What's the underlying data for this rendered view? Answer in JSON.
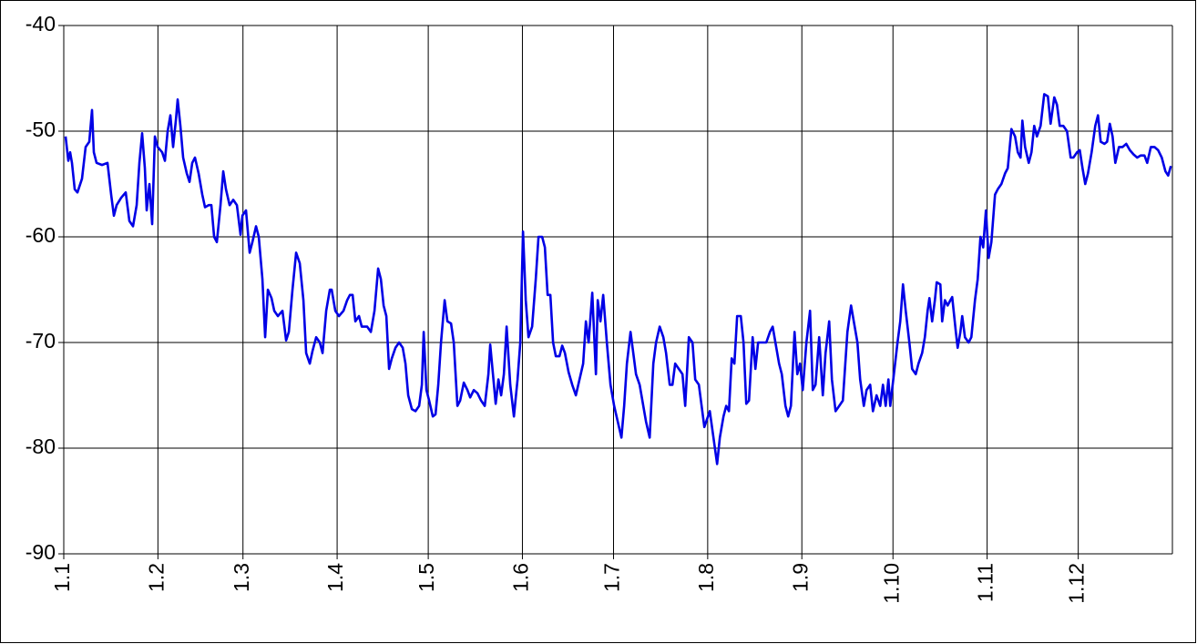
{
  "chart_data": {
    "type": "line",
    "color": "#0000e6",
    "grid": true,
    "xlim": [
      0,
      365
    ],
    "xticks": [
      {
        "value": 0,
        "label": "1.1"
      },
      {
        "value": 31,
        "label": "1.2"
      },
      {
        "value": 59,
        "label": "1.3"
      },
      {
        "value": 90,
        "label": "1.4"
      },
      {
        "value": 120,
        "label": "1.5"
      },
      {
        "value": 151,
        "label": "1.6"
      },
      {
        "value": 181,
        "label": "1.7"
      },
      {
        "value": 212,
        "label": "1.8"
      },
      {
        "value": 243,
        "label": "1.9"
      },
      {
        "value": 273,
        "label": "1.10"
      },
      {
        "value": 304,
        "label": "1.11"
      },
      {
        "value": 334,
        "label": "1.12"
      }
    ],
    "ylim": [
      -90,
      -40
    ],
    "yticks": [
      -90,
      -80,
      -70,
      -60,
      -50,
      -40
    ],
    "x": [
      0.6,
      1.5,
      2.1,
      2.7,
      3.6,
      4.5,
      6,
      7.2,
      8.4,
      9.3,
      9.9,
      10.8,
      12.6,
      14.4,
      15.6,
      16.5,
      17.4,
      18.9,
      20.4,
      21.6,
      22.8,
      24,
      24.9,
      25.8,
      26.7,
      27.3,
      28.2,
      29.1,
      30,
      30.9,
      32.4,
      33.3,
      34.2,
      35.1,
      36,
      36.9,
      37.5,
      38.4,
      39.3,
      40.5,
      41.4,
      42.3,
      43.2,
      44.4,
      45.6,
      46.5,
      47.7,
      48.6,
      49.5,
      50.4,
      51.6,
      52.5,
      53.4,
      54.6,
      55.8,
      57,
      58.2,
      58.8,
      60,
      61.2,
      62.1,
      63.3,
      64.2,
      65.4,
      66.3,
      67.2,
      68.4,
      69.3,
      70.5,
      72,
      73.2,
      74.1,
      75.3,
      76.5,
      77.7,
      78.9,
      79.8,
      81,
      81.9,
      83.1,
      84.3,
      85.2,
      86.4,
      87.6,
      88.2,
      89.4,
      90.6,
      92.1,
      93.3,
      94.2,
      95.1,
      96,
      97.2,
      98.1,
      99.9,
      101.1,
      102.3,
      103.5,
      104.4,
      105.3,
      106.2,
      107.1,
      108,
      109.2,
      110.4,
      111.6,
      112.5,
      113.4,
      114.6,
      115.8,
      117,
      117.9,
      118.5,
      119.4,
      120.3,
      121.5,
      122.4,
      123.3,
      124.2,
      125.4,
      126.3,
      127.5,
      128.4,
      129.6,
      130.5,
      131.7,
      132.9,
      133.8,
      135,
      136.2,
      137.4,
      138.6,
      139.8,
      140.4,
      141.3,
      142.2,
      143.1,
      144,
      144.9,
      145.8,
      147,
      148.2,
      149.4,
      150.3,
      151.2,
      152.1,
      153,
      154.2,
      155.4,
      156.3,
      157.5,
      158.4,
      159.3,
      160.2,
      161.1,
      162,
      163.2,
      164.1,
      165,
      166.2,
      167.4,
      168.6,
      169.8,
      171,
      171.9,
      172.8,
      174,
      175.2,
      175.8,
      176.7,
      177.6,
      178.8,
      180,
      181.2,
      182.4,
      183.6,
      184.5,
      185.4,
      186.6,
      187.5,
      188.4,
      189.6,
      190.8,
      191.7,
      192.9,
      194.1,
      195,
      196.2,
      197.4,
      198.3,
      199.5,
      200.4,
      201.3,
      202.5,
      203.7,
      204.6,
      205.8,
      207,
      207.9,
      209.1,
      210,
      210.9,
      212.1,
      212.7,
      213.9,
      215.1,
      216,
      217.2,
      218.1,
      219,
      219.9,
      220.8,
      221.7,
      222.9,
      223.8,
      224.7,
      225.6,
      226.8,
      227.7,
      228.6,
      230.1,
      231.3,
      232.5,
      233.4,
      234.6,
      235.5,
      236.4,
      237.6,
      238.5,
      239.4,
      240.6,
      241.5,
      242.4,
      243.3,
      244.5,
      245.7,
      246.6,
      247.5,
      248.7,
      249.9,
      250.8,
      252,
      252.9,
      254.1,
      255.3,
      256.5,
      258,
      259.2,
      260.1,
      261.3,
      262.2,
      263.4,
      264.3,
      265.5,
      266.4,
      267.6,
      268.8,
      269.7,
      270.6,
      271.5,
      272.1,
      273.3,
      274.5,
      275.4,
      276.3,
      277.2,
      278.4,
      279.3,
      280.5,
      281.4,
      282.6,
      283.5,
      284.4,
      285,
      285.9,
      286.8,
      287.4,
      288.6,
      289.2,
      290.1,
      291,
      291.9,
      292.5,
      293.7,
      294.3,
      295.2,
      295.8,
      296.7,
      297.9,
      298.8,
      300,
      300.9,
      301.8,
      302.7,
      303.6,
      304.5,
      305.4,
      306.6,
      307.5,
      308.7,
      309.9,
      310.8,
      312,
      313.2,
      314.1,
      315,
      315.6,
      316.5,
      317.7,
      318.6,
      319.5,
      320.4,
      321.6,
      322.8,
      324,
      324.9,
      326.1,
      327,
      327.9,
      329.1,
      330.3,
      331.5,
      332.4,
      333.6,
      334.5,
      335.4,
      336.3,
      337.2,
      338.4,
      339.6,
      340.5,
      341.4,
      342.6,
      343.5,
      344.4,
      345.3,
      346.2,
      347.4,
      348.6,
      349.8,
      351,
      352.2,
      353.4,
      354.6,
      355.8,
      356.7,
      357.9,
      359.1,
      360.3,
      361.5,
      362.7,
      363.6,
      364.5
    ],
    "values": [
      -50.5,
      -52.8,
      -52,
      -53,
      -55.5,
      -55.8,
      -54.5,
      -51.5,
      -51,
      -48,
      -52,
      -53,
      -53.2,
      -53,
      -56,
      -58,
      -57,
      -56.3,
      -55.8,
      -58.5,
      -59,
      -57,
      -53,
      -50.2,
      -53.5,
      -57.5,
      -55,
      -58.8,
      -50.5,
      -51.5,
      -52,
      -52.8,
      -50,
      -48.5,
      -51.5,
      -49,
      -47,
      -49.5,
      -52.5,
      -54,
      -54.8,
      -53,
      -52.5,
      -54,
      -56,
      -57.2,
      -57,
      -57,
      -60,
      -60.5,
      -57,
      -53.8,
      -55.5,
      -57,
      -56.5,
      -57,
      -59.8,
      -58,
      -57.5,
      -61.5,
      -60.5,
      -59,
      -60,
      -64,
      -69.5,
      -65,
      -65.8,
      -67,
      -67.5,
      -67,
      -69.8,
      -69,
      -65,
      -61.5,
      -62.5,
      -66,
      -71,
      -72,
      -70.8,
      -69.5,
      -70,
      -71,
      -67,
      -65,
      -65,
      -67,
      -67.5,
      -67,
      -66,
      -65.5,
      -65.5,
      -68,
      -67.5,
      -68.5,
      -68.5,
      -69,
      -67,
      -63,
      -64,
      -66.5,
      -67.5,
      -72.5,
      -71.5,
      -70.5,
      -70,
      -70.5,
      -72,
      -75,
      -76.3,
      -76.5,
      -76,
      -74,
      -69,
      -74.5,
      -75.5,
      -77,
      -76.8,
      -74,
      -70,
      -66,
      -68,
      -68.2,
      -70,
      -76,
      -75.5,
      -73.8,
      -74.5,
      -75.2,
      -74.5,
      -74.8,
      -75.5,
      -76,
      -73,
      -70.2,
      -73,
      -75.8,
      -73.5,
      -75,
      -73,
      -68.5,
      -74,
      -77,
      -73.5,
      -70,
      -59.5,
      -66,
      -69.5,
      -68.5,
      -64,
      -60,
      -60,
      -61,
      -65.5,
      -65.5,
      -70,
      -71.3,
      -71.3,
      -70.3,
      -71,
      -72.8,
      -74,
      -75,
      -73.5,
      -72,
      -68,
      -70,
      -65.3,
      -73,
      -66,
      -68,
      -65.5,
      -70,
      -74,
      -76,
      -77.5,
      -79,
      -76,
      -72,
      -69,
      -71,
      -73,
      -74,
      -76,
      -77.5,
      -79,
      -72,
      -70,
      -68.5,
      -69.5,
      -71,
      -74,
      -74,
      -72,
      -72.5,
      -73,
      -76,
      -69.5,
      -70,
      -73.5,
      -74,
      -76,
      -78,
      -77,
      -76.5,
      -79,
      -81.5,
      -79,
      -77,
      -76,
      -76.5,
      -71.5,
      -72,
      -67.5,
      -67.5,
      -70,
      -75.8,
      -75.5,
      -69.5,
      -72.5,
      -70,
      -70,
      -70,
      -69,
      -68.5,
      -70.5,
      -72,
      -73,
      -76,
      -77,
      -76,
      -69,
      -73,
      -72,
      -74.5,
      -70,
      -67,
      -74.5,
      -74,
      -69.5,
      -75,
      -71,
      -68,
      -73.5,
      -76.5,
      -76,
      -75.5,
      -69,
      -66.5,
      -68,
      -70,
      -73.5,
      -76,
      -74.5,
      -74,
      -76.5,
      -75,
      -76,
      -74,
      -76,
      -73.5,
      -76,
      -73,
      -70,
      -68,
      -64.5,
      -67,
      -70,
      -72.5,
      -73,
      -72,
      -71,
      -69.5,
      -67,
      -65.8,
      -68,
      -66,
      -64.3,
      -64.5,
      -68,
      -66,
      -66.5,
      -66,
      -65.7,
      -69,
      -70.5,
      -69,
      -67.5,
      -69.5,
      -70,
      -69.5,
      -66,
      -64,
      -60,
      -61,
      -57.5,
      -62,
      -60.5,
      -56,
      -55.5,
      -55,
      -54,
      -53.5,
      -49.8,
      -50.5,
      -52,
      -52.5,
      -49,
      -51.5,
      -53,
      -52,
      -49.5,
      -50.5,
      -49.5,
      -46.5,
      -46.7,
      -49.3,
      -46.8,
      -47.5,
      -49.5,
      -49.5,
      -50,
      -52.5,
      -52.5,
      -52,
      -51.8,
      -53.5,
      -55,
      -54,
      -52,
      -49.5,
      -48.5,
      -51,
      -51.2,
      -51,
      -49.3,
      -50.5,
      -53,
      -51.5,
      -51.5,
      -51.2,
      -51.8,
      -52.2,
      -52.5,
      -52.3,
      -52.3,
      -53,
      -51.5,
      -51.5,
      -51.8,
      -52.5,
      -53.8,
      -54.2,
      -53.3
    ]
  }
}
